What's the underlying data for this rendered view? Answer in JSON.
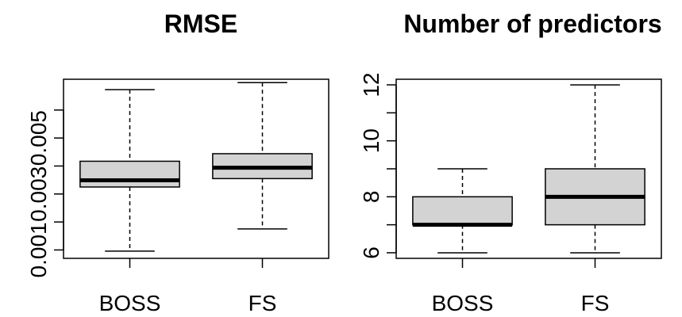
{
  "chart_data": [
    {
      "type": "box",
      "title": "RMSE",
      "xlabel": "",
      "ylabel": "",
      "categories": [
        "BOSS",
        "FS"
      ],
      "yticks": [
        0.001,
        0.002,
        0.003,
        0.004,
        0.005,
        0.006
      ],
      "ytick_labels": [
        "0.001",
        "0.003",
        "0.005"
      ],
      "ylim": [
        0.0007,
        0.0071
      ],
      "boxes": [
        {
          "category": "BOSS",
          "whisker_low": 0.00096,
          "q1": 0.00325,
          "median": 0.00349,
          "q3": 0.00417,
          "whisker_high": 0.00673
        },
        {
          "category": "FS",
          "whisker_low": 0.00175,
          "q1": 0.00355,
          "median": 0.00394,
          "q3": 0.00444,
          "whisker_high": 0.00698
        }
      ],
      "grid": false,
      "legend": "none"
    },
    {
      "type": "box",
      "title": "Number of predictors",
      "xlabel": "",
      "ylabel": "",
      "categories": [
        "BOSS",
        "FS"
      ],
      "yticks": [
        6,
        7,
        8,
        9,
        10,
        11,
        12
      ],
      "ytick_labels": [
        "6",
        "8",
        "10",
        "12"
      ],
      "ylim": [
        5.8,
        12.2
      ],
      "boxes": [
        {
          "category": "BOSS",
          "whisker_low": 6,
          "q1": 7,
          "median": 7,
          "q3": 8,
          "whisker_high": 9
        },
        {
          "category": "FS",
          "whisker_low": 6,
          "q1": 7,
          "median": 8,
          "q3": 9,
          "whisker_high": 12
        }
      ],
      "grid": false,
      "legend": "none"
    }
  ]
}
